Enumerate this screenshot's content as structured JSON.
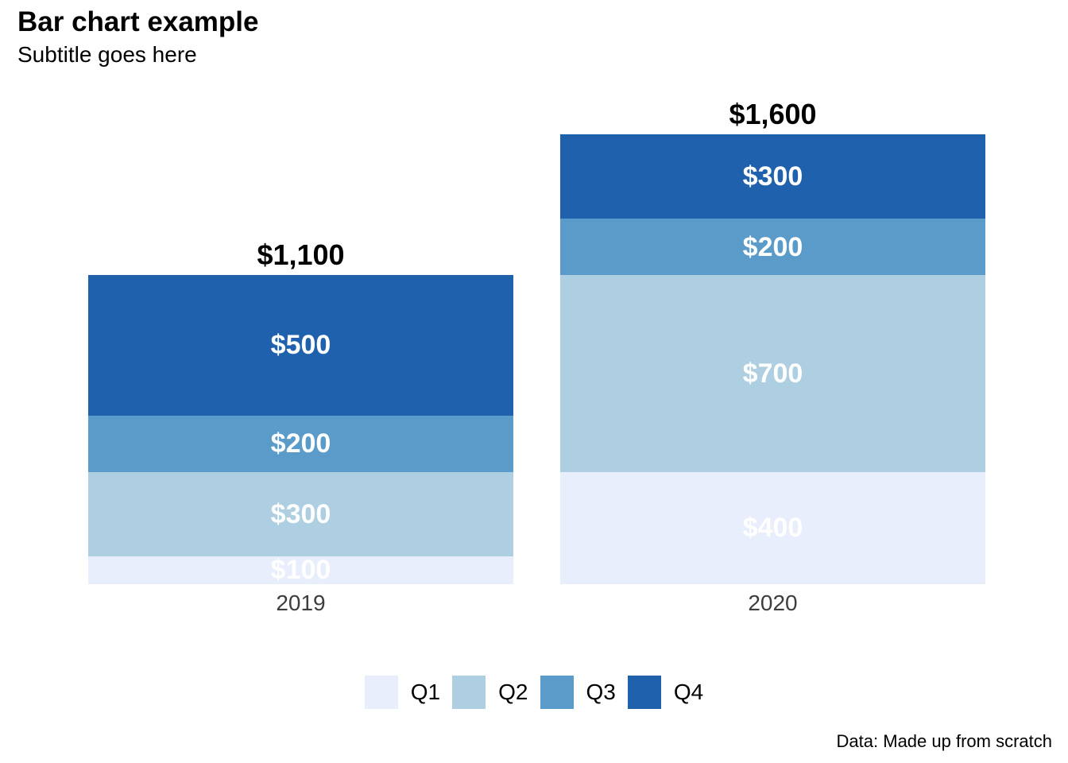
{
  "header": {
    "title": "Bar chart example",
    "subtitle": "Subtitle goes here"
  },
  "caption": "Data: Made up from scratch",
  "palette": {
    "q1": "#e8eefb",
    "q2": "#aecfe2",
    "q3": "#5a9bca",
    "q4": "#1f61ad"
  },
  "chart_data": {
    "type": "bar",
    "stacked": true,
    "orientation": "vertical",
    "categories": [
      "2019",
      "2020"
    ],
    "series": [
      {
        "name": "Q1",
        "color": "#e8eefb",
        "values": [
          100,
          400
        ]
      },
      {
        "name": "Q2",
        "color": "#aecfe2",
        "values": [
          300,
          700
        ]
      },
      {
        "name": "Q3",
        "color": "#5a9bca",
        "values": [
          200,
          200
        ]
      },
      {
        "name": "Q4",
        "color": "#1f61ad",
        "values": [
          500,
          300
        ]
      }
    ],
    "totals": [
      1100,
      1600
    ],
    "total_labels": [
      "$1,100",
      "$1,600"
    ],
    "segment_labels": [
      [
        "$100",
        "$300",
        "$200",
        "$500"
      ],
      [
        "$400",
        "$700",
        "$200",
        "$300"
      ]
    ],
    "title": "Bar chart example",
    "subtitle": "Subtitle goes here",
    "xlabel": "",
    "ylabel": "",
    "ylim": [
      0,
      1600
    ],
    "grid": false,
    "axes_visible": false,
    "legend": [
      "Q1",
      "Q2",
      "Q3",
      "Q4"
    ],
    "legend_position": "bottom",
    "value_text_color": "#ffffff",
    "total_text_color": "#000000",
    "axis_text_color": "#3d3d3d"
  }
}
